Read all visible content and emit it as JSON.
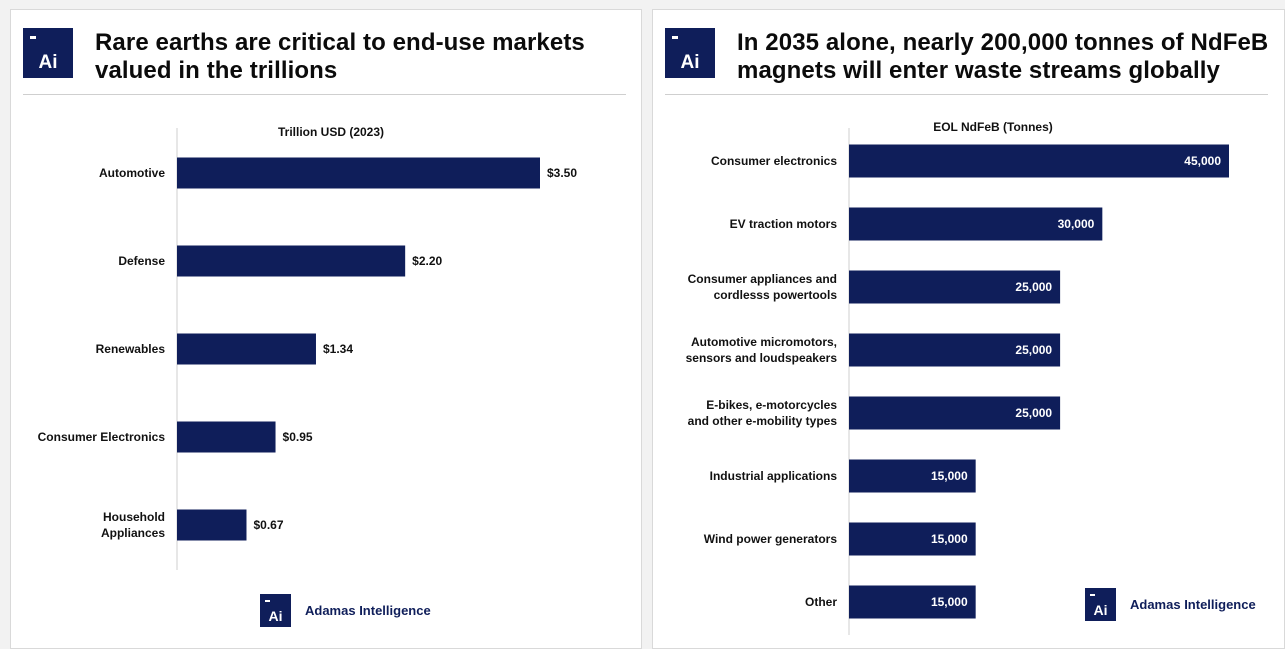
{
  "colors": {
    "navy": "#0f1e5a",
    "bar_label_inside": "#ffffff"
  },
  "logo": {
    "text": "Ai",
    "icon": "adamas-logo-icon"
  },
  "left_panel": {
    "title_line1": "Rare earths are critical to end-use markets",
    "title_line2": "valued in the trillions",
    "brand": "Adamas Intelligence"
  },
  "right_panel": {
    "title_line1": "In 2035 alone, nearly 200,000 tonnes of NdFeB",
    "title_line2": "magnets will enter waste streams globally",
    "brand": "Adamas Intelligence"
  },
  "chart_data": [
    {
      "type": "bar",
      "orientation": "horizontal",
      "title": "Trillion USD (2023)",
      "categories": [
        [
          "Automotive"
        ],
        [
          "Defense"
        ],
        [
          "Renewables"
        ],
        [
          "Consumer Electronics"
        ],
        [
          "Household",
          "Appliances"
        ]
      ],
      "values": [
        3.5,
        2.2,
        1.34,
        0.95,
        0.67
      ],
      "value_labels": [
        "$3.50",
        "$2.20",
        "$1.34",
        "$0.95",
        "$0.67"
      ],
      "label_position": "outside",
      "xlim": [
        0,
        3.5
      ]
    },
    {
      "type": "bar",
      "orientation": "horizontal",
      "title": "EOL NdFeB (Tonnes)",
      "categories": [
        [
          "Consumer electronics"
        ],
        [
          "EV traction motors"
        ],
        [
          "Consumer appliances and",
          "cordlesss powertools"
        ],
        [
          "Automotive micromotors,",
          "sensors and loudspeakers"
        ],
        [
          "E-bikes, e-motorcycles",
          "and other e-mobility types"
        ],
        [
          "Industrial applications"
        ],
        [
          "Wind power generators"
        ],
        [
          "Other"
        ]
      ],
      "values": [
        45000,
        30000,
        25000,
        25000,
        25000,
        15000,
        15000,
        15000
      ],
      "value_labels": [
        "45,000",
        "30,000",
        "25,000",
        "25,000",
        "25,000",
        "15,000",
        "15,000",
        "15,000"
      ],
      "label_position": "inside",
      "xlim": [
        0,
        45000
      ]
    }
  ]
}
